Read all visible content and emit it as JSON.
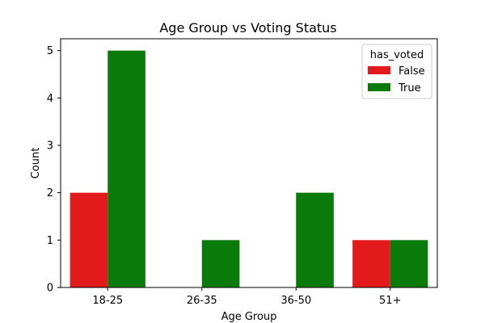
{
  "chart_data": {
    "type": "bar",
    "title": "Age Group vs Voting Status",
    "xlabel": "Age Group",
    "ylabel": "Count",
    "categories": [
      "18-25",
      "26-35",
      "36-50",
      "51+"
    ],
    "series": [
      {
        "name": "False",
        "color": "#e31a1c",
        "values": [
          2,
          null,
          null,
          1
        ]
      },
      {
        "name": "True",
        "color": "#0a7a0a",
        "values": [
          5,
          1,
          2,
          1
        ]
      }
    ],
    "ylim": [
      0,
      5.25
    ],
    "yticks": [
      0,
      1,
      2,
      3,
      4,
      5
    ],
    "grid": false,
    "legend": {
      "title": "has_voted",
      "placement": "top-right"
    }
  }
}
